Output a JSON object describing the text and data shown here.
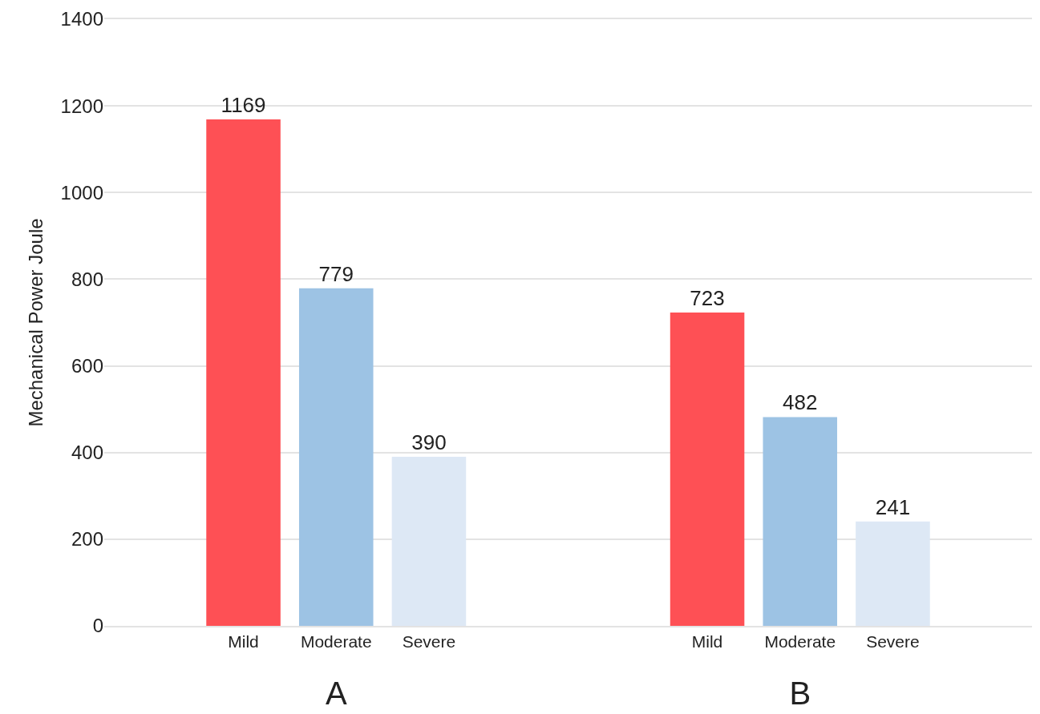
{
  "chart_data": [
    {
      "type": "bar",
      "xlabel": "A",
      "ylabel": "Mechanical Power Joule",
      "categories": [
        "Mild",
        "Moderate",
        "Severe"
      ],
      "values": [
        1169,
        779,
        390
      ],
      "colors": [
        "#fe5055",
        "#9dc3e4",
        "#dde8f5"
      ],
      "data_labels": true,
      "ylim": [
        0,
        1400
      ],
      "yticks": [
        0,
        200,
        400,
        600,
        800,
        1000,
        1200,
        1400
      ],
      "grid": "y"
    },
    {
      "type": "bar",
      "xlabel": "B",
      "categories": [
        "Mild",
        "Moderate",
        "Severe"
      ],
      "values": [
        723,
        482,
        241
      ],
      "colors": [
        "#fe5055",
        "#9dc3e4",
        "#dde8f5"
      ],
      "data_labels": true,
      "ylim": [
        0,
        1400
      ],
      "yticks": [
        0,
        200,
        400,
        600,
        800,
        1000,
        1200,
        1400
      ],
      "grid": "y",
      "tick_labels": "x"
    }
  ]
}
